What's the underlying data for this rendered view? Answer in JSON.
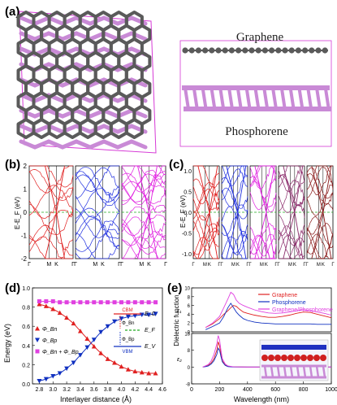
{
  "panels": {
    "a": "(a)",
    "b": "(b)",
    "c": "(c)",
    "d": "(d)",
    "e": "(e)"
  },
  "panel_a": {
    "graphene_label": "Graphene",
    "phosphorene_label": "Phosphorene",
    "colors": {
      "carbon": "#5a5a5a",
      "phosphorus": "#c98ad6",
      "cell": "#d63ad6"
    }
  },
  "panel_b": {
    "ylabel": "E-E_F (eV)",
    "yticks": [
      "2",
      "1",
      "0",
      "-1",
      "-2"
    ],
    "xticks": [
      "Γ",
      "M",
      "K",
      "Γ"
    ],
    "colors": [
      "#e02020",
      "#2030e0",
      "#e020e0"
    ]
  },
  "panel_c": {
    "ylabel": "E-E_F (eV)",
    "yticks": [
      "1.0",
      "0.5",
      "0.0",
      "-0.5",
      "-1.0"
    ],
    "xticks": [
      "Γ",
      "M",
      "K",
      "Γ"
    ],
    "colors": [
      "#e02020",
      "#2030e0",
      "#e020e0",
      "#8a2a6a",
      "#8a1a1a"
    ]
  },
  "chart_data": [
    {
      "type": "line",
      "panel": "d",
      "xlabel": "Interlayer distance (Å)",
      "ylabel": "Energy (eV)",
      "xlim": [
        2.7,
        4.6
      ],
      "ylim": [
        0.0,
        1.0
      ],
      "xticks": [
        "2.8",
        "3.0",
        "3.2",
        "3.4",
        "3.6",
        "3.8",
        "4.0",
        "4.2",
        "4.4",
        "4.6"
      ],
      "yticks": [
        "0.0",
        "0.2",
        "0.4",
        "0.6",
        "0.8",
        "1.0"
      ],
      "x": [
        2.8,
        2.9,
        3.0,
        3.1,
        3.2,
        3.3,
        3.4,
        3.5,
        3.6,
        3.7,
        3.8,
        3.9,
        4.0,
        4.1,
        4.2,
        4.3,
        4.4,
        4.5
      ],
      "series": [
        {
          "name": "Φ_Bn",
          "color": "#e02020",
          "marker": "triangle-up",
          "values": [
            0.83,
            0.81,
            0.78,
            0.74,
            0.69,
            0.63,
            0.55,
            0.47,
            0.39,
            0.32,
            0.26,
            0.22,
            0.18,
            0.15,
            0.13,
            0.12,
            0.11,
            0.11
          ]
        },
        {
          "name": "Φ_Bp",
          "color": "#1030c0",
          "marker": "triangle-down",
          "values": [
            0.03,
            0.05,
            0.08,
            0.11,
            0.16,
            0.22,
            0.3,
            0.38,
            0.46,
            0.54,
            0.6,
            0.65,
            0.68,
            0.7,
            0.71,
            0.72,
            0.72,
            0.73
          ]
        },
        {
          "name": "Φ_Bn + Φ_Bp",
          "color": "#e040e0",
          "marker": "square",
          "values": [
            0.86,
            0.86,
            0.86,
            0.85,
            0.85,
            0.85,
            0.85,
            0.85,
            0.85,
            0.85,
            0.85,
            0.85,
            0.85,
            0.85,
            0.85,
            0.85,
            0.85,
            0.85
          ]
        }
      ],
      "inset": {
        "cbm": "CBM",
        "vbm": "VBM",
        "ec": "E_C",
        "ef": "E_F",
        "ev": "E_V",
        "phi_bn": "Φ_Bn",
        "phi_bp": "Φ_Bp"
      }
    },
    {
      "type": "line",
      "panel": "e",
      "xlabel": "Wavelength (nm)",
      "ylabel": "Dielectric function",
      "xlim": [
        0,
        1000
      ],
      "xticks": [
        "0",
        "200",
        "400",
        "600",
        "800",
        "1000"
      ],
      "top": {
        "ylabel": "ε₁",
        "ylim": [
          0,
          10
        ],
        "yticks": [
          "0",
          "2",
          "4",
          "6",
          "8",
          "10"
        ],
        "x": [
          100,
          150,
          200,
          230,
          260,
          280,
          300,
          320,
          340,
          370,
          400,
          450,
          500,
          550,
          600,
          650,
          700,
          750,
          800,
          850,
          900,
          950,
          1000
        ],
        "series": [
          {
            "name": "Graphene",
            "color": "#e02020",
            "values": [
              1.0,
              1.8,
              3.0,
              4.0,
              4.8,
              5.5,
              6.0,
              5.8,
              5.2,
              4.5,
              4.2,
              3.8,
              3.5,
              3.3,
              3.3,
              3.5,
              3.8,
              4.2,
              4.5,
              4.4,
              4.0,
              3.6,
              3.2
            ]
          },
          {
            "name": "Phosphorene",
            "color": "#1030c0",
            "values": [
              0.5,
              1.2,
              2.0,
              3.5,
              5.5,
              6.5,
              5.5,
              4.5,
              3.8,
              3.0,
              2.6,
              2.2,
              2.0,
              1.9,
              1.8,
              1.8,
              1.8,
              1.8,
              1.8,
              1.8,
              1.7,
              1.7,
              1.7
            ]
          },
          {
            "name": "Graphene/Phosphorene",
            "color": "#e040e0",
            "values": [
              1.0,
              2.0,
              3.5,
              5.5,
              7.5,
              9.0,
              8.5,
              7.2,
              6.5,
              6.0,
              5.6,
              5.0,
              4.6,
              4.3,
              4.2,
              4.3,
              4.5,
              4.8,
              5.0,
              4.8,
              4.5,
              4.2,
              3.8
            ]
          }
        ]
      },
      "bottom": {
        "ylabel": "ε₂",
        "ylim": [
          -8,
          16
        ],
        "yticks": [
          "-8",
          "0",
          "8",
          "16"
        ],
        "x": [
          80,
          100,
          120,
          140,
          160,
          180,
          190,
          200,
          210,
          220,
          240,
          260,
          300,
          400,
          600,
          800,
          1000
        ],
        "series": [
          {
            "name": "Graphene",
            "color": "#e02020",
            "values": [
              0,
              0.5,
              1,
              2,
              4,
              8,
              12,
              10,
              6,
              3,
              1,
              0.3,
              0.1,
              0,
              0,
              0,
              0
            ]
          },
          {
            "name": "Phosphorene",
            "color": "#1030c0",
            "values": [
              0,
              0.2,
              0.5,
              1.5,
              3,
              6,
              9,
              8,
              5,
              2.5,
              0.8,
              0.2,
              0,
              0,
              0,
              0,
              0
            ]
          },
          {
            "name": "Graphene/Phosphorene",
            "color": "#e040e0",
            "values": [
              0,
              0.6,
              1.2,
              3,
              6,
              11,
              15,
              13,
              8,
              4,
              1.5,
              0.5,
              0.1,
              0,
              0,
              0,
              0
            ]
          }
        ]
      }
    }
  ]
}
